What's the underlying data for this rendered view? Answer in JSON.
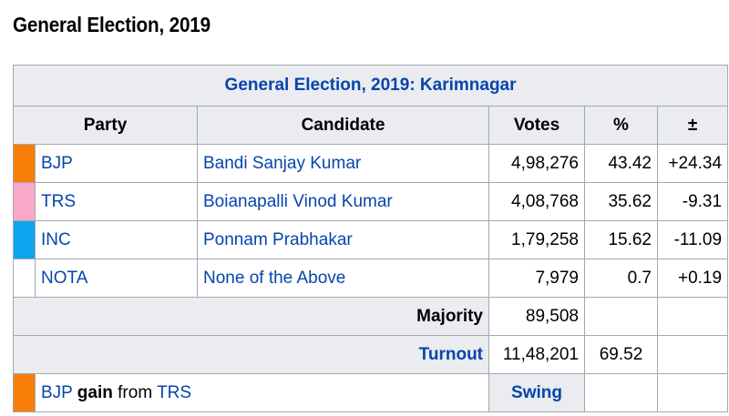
{
  "heading": "General Election, 2019",
  "table": {
    "caption": "General Election, 2019: Karimnagar",
    "headers": {
      "party": "Party",
      "candidate": "Candidate",
      "votes": "Votes",
      "pct": "%",
      "swing": "±"
    },
    "rows": [
      {
        "color": "#f97d09",
        "party": "BJP",
        "candidate": "Bandi Sanjay Kumar",
        "votes": "4,98,276",
        "pct": "43.42",
        "change": "+24.34"
      },
      {
        "color": "#f9a8c9",
        "party": "TRS",
        "candidate": "Boianapalli Vinod Kumar",
        "votes": "4,08,768",
        "pct": "35.62",
        "change": "-9.31"
      },
      {
        "color": "#0ca5f0",
        "party": "INC",
        "candidate": "Ponnam Prabhakar",
        "votes": "1,79,258",
        "pct": "15.62",
        "change": "-11.09"
      },
      {
        "color": "#ffffff",
        "party": "NOTA",
        "candidate": "None of the Above",
        "votes": "7,979",
        "pct": "0.7",
        "change": "+0.19"
      }
    ],
    "majority": {
      "label": "Majority",
      "votes": "89,508"
    },
    "turnout": {
      "label": "Turnout",
      "votes": "11,48,201",
      "pct": "69.52"
    },
    "result": {
      "color": "#f97d09",
      "winner": "BJP",
      "word": "gain",
      "from": "from",
      "loser": "TRS",
      "swing_label": "Swing"
    }
  }
}
